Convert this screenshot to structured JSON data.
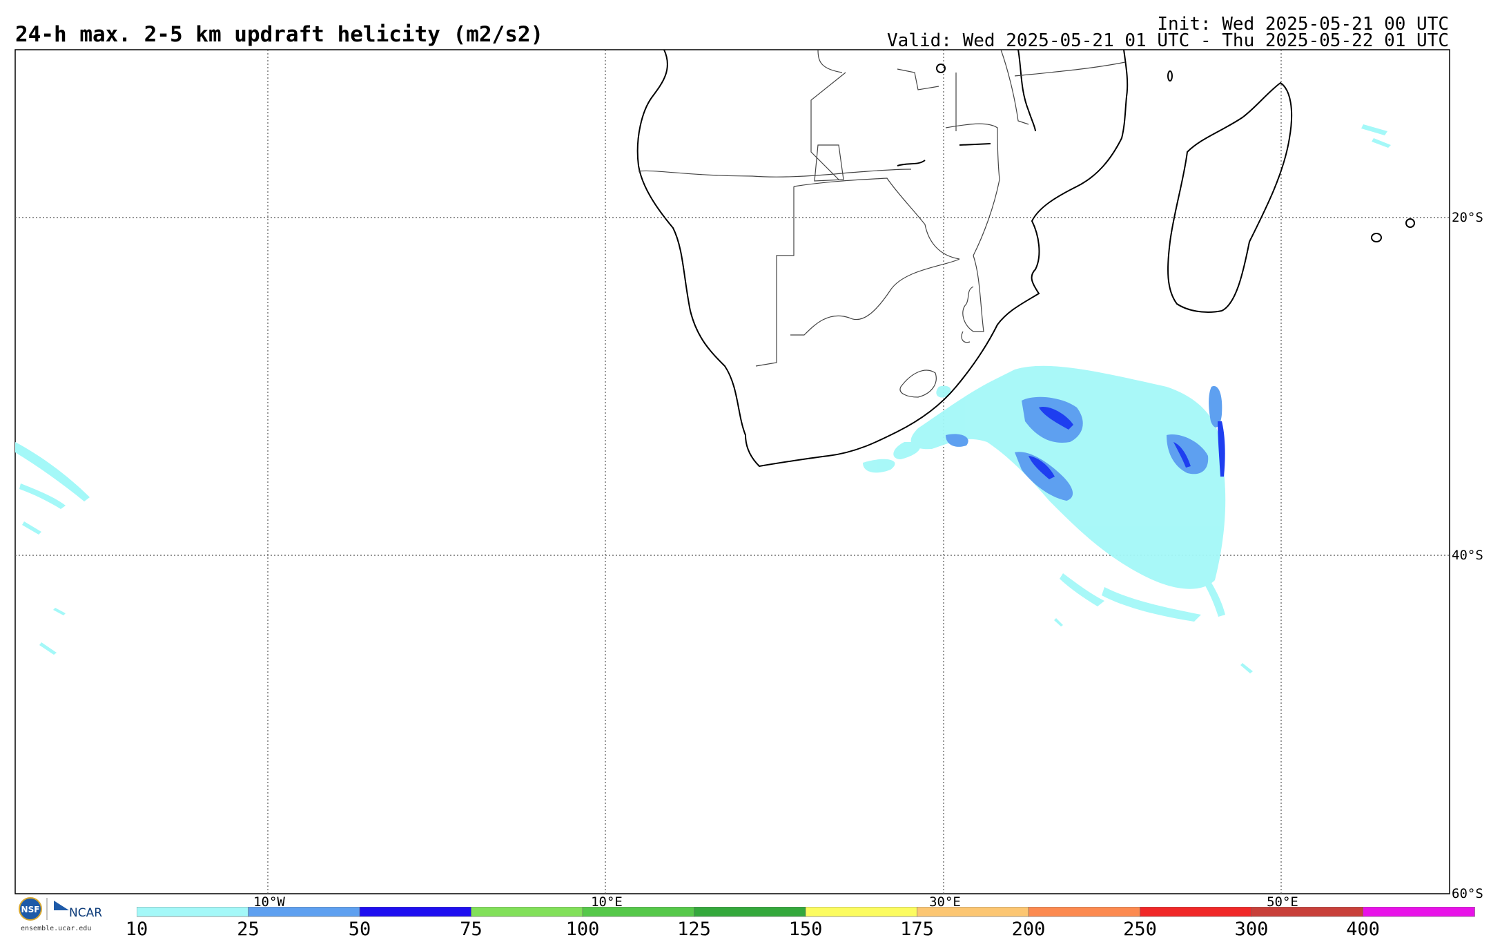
{
  "header": {
    "title": "24-h max. 2-5 km updraft helicity (m2/s2)",
    "init": "Init: Wed 2025-05-21 00 UTC",
    "valid": "Valid: Wed 2025-05-21 01 UTC - Thu 2025-05-22 01 UTC"
  },
  "map": {
    "lon_labels": [
      "10°W",
      "10°E",
      "30°E",
      "50°E"
    ],
    "lat_labels": [
      "20°S",
      "40°S",
      "60°S"
    ],
    "grid": "dotted"
  },
  "colorbar": {
    "ticks": [
      "10",
      "25",
      "50",
      "75",
      "100",
      "125",
      "150",
      "175",
      "200",
      "250",
      "300",
      "400"
    ],
    "colors": [
      "#a4f8f8",
      "#5ea0f0",
      "#1e0ef0",
      "#82e05a",
      "#56c84a",
      "#34a83c",
      "#fcfc60",
      "#fcc672",
      "#fc8a50",
      "#f02828",
      "#c8403a",
      "#e812e8"
    ]
  },
  "logos": {
    "left": "NSF",
    "right": "NCAR",
    "url_text": "ensemble.ucar.edu"
  }
}
